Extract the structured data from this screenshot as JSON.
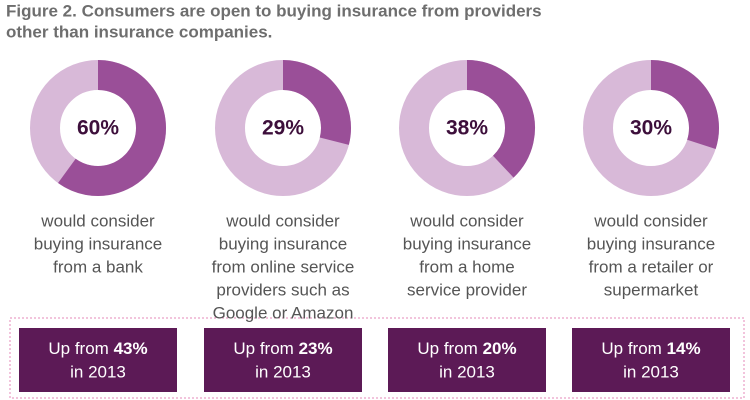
{
  "title": [
    "Figure 2. Consumers are open to buying insurance from providers",
    "other than insurance companies."
  ],
  "chart_data": [
    {
      "type": "donut",
      "values": [
        60
      ],
      "value_labels": [
        "60%"
      ],
      "color": "#9a4f98",
      "track_color": "#d8b9d8",
      "caption": [
        "would consider",
        "buying insurance",
        "from a bank"
      ],
      "note": {
        "prefix": "Up from",
        "value": 43,
        "label": "43%",
        "suffix": "in 2013"
      }
    },
    {
      "type": "donut",
      "values": [
        29
      ],
      "value_labels": [
        "29%"
      ],
      "color": "#9a4f98",
      "track_color": "#d8b9d8",
      "caption": [
        "would consider",
        "buying insurance",
        "from online service",
        "providers such as",
        "Google or Amazon"
      ],
      "note": {
        "prefix": "Up from",
        "value": 23,
        "label": "23%",
        "suffix": "in 2013"
      }
    },
    {
      "type": "donut",
      "values": [
        38
      ],
      "value_labels": [
        "38%"
      ],
      "color": "#9a4f98",
      "track_color": "#d8b9d8",
      "caption": [
        "would consider",
        "buying insurance",
        "from a home",
        "service provider"
      ],
      "note": {
        "prefix": "Up from",
        "value": 20,
        "label": "20%",
        "suffix": "in 2013"
      }
    },
    {
      "type": "donut",
      "values": [
        30
      ],
      "value_labels": [
        "30%"
      ],
      "color": "#9a4f98",
      "track_color": "#d8b9d8",
      "caption": [
        "would consider",
        "buying insurance",
        "from a retailer or",
        "supermarket"
      ],
      "note": {
        "prefix": "Up from",
        "value": 14,
        "label": "14%",
        "suffix": "in 2013"
      }
    }
  ]
}
